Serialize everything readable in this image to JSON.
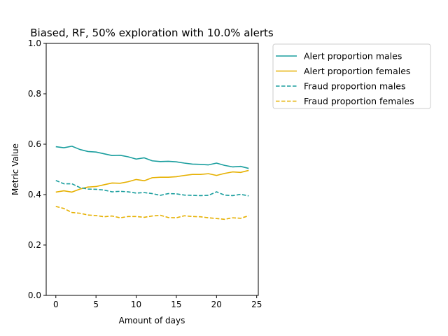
{
  "chart_data": {
    "type": "line",
    "title": "Biased, RF, 50% exploration with 10.0% alerts",
    "xlabel": "Amount of days",
    "ylabel": "Metric Value",
    "xlim": [
      -1.2,
      25.2
    ],
    "ylim": [
      0,
      1
    ],
    "xticks": [
      0,
      5,
      10,
      15,
      20,
      25
    ],
    "yticks": [
      0.0,
      0.2,
      0.4,
      0.6,
      0.8,
      1.0
    ],
    "grid": false,
    "legend_placement": "outside-top-right",
    "x": [
      0,
      1,
      2,
      3,
      4,
      5,
      6,
      7,
      8,
      9,
      10,
      11,
      12,
      13,
      14,
      15,
      16,
      17,
      18,
      19,
      20,
      21,
      22,
      23,
      24
    ],
    "series": [
      {
        "name": "Alert proportion males",
        "color": "#1a9e9e",
        "dash": "solid",
        "values": [
          0.59,
          0.586,
          0.592,
          0.579,
          0.571,
          0.569,
          0.562,
          0.555,
          0.556,
          0.55,
          0.541,
          0.546,
          0.534,
          0.531,
          0.532,
          0.53,
          0.525,
          0.521,
          0.52,
          0.518,
          0.525,
          0.516,
          0.51,
          0.512,
          0.504
        ]
      },
      {
        "name": "Alert proportion females",
        "color": "#e6b000",
        "dash": "solid",
        "values": [
          0.41,
          0.415,
          0.41,
          0.422,
          0.43,
          0.432,
          0.439,
          0.446,
          0.445,
          0.451,
          0.46,
          0.455,
          0.467,
          0.469,
          0.469,
          0.471,
          0.476,
          0.48,
          0.48,
          0.483,
          0.476,
          0.484,
          0.49,
          0.488,
          0.496
        ]
      },
      {
        "name": "Fraud proportion males",
        "color": "#1a9e9e",
        "dash": "dashed",
        "values": [
          0.456,
          0.443,
          0.443,
          0.428,
          0.422,
          0.421,
          0.418,
          0.411,
          0.413,
          0.411,
          0.406,
          0.408,
          0.404,
          0.397,
          0.404,
          0.403,
          0.398,
          0.397,
          0.396,
          0.397,
          0.411,
          0.398,
          0.396,
          0.401,
          0.395
        ]
      },
      {
        "name": "Fraud proportion females",
        "color": "#e6b000",
        "dash": "dashed",
        "values": [
          0.353,
          0.345,
          0.329,
          0.326,
          0.319,
          0.317,
          0.312,
          0.315,
          0.308,
          0.313,
          0.313,
          0.31,
          0.315,
          0.318,
          0.309,
          0.308,
          0.316,
          0.313,
          0.312,
          0.308,
          0.305,
          0.302,
          0.308,
          0.306,
          0.316
        ]
      }
    ]
  }
}
